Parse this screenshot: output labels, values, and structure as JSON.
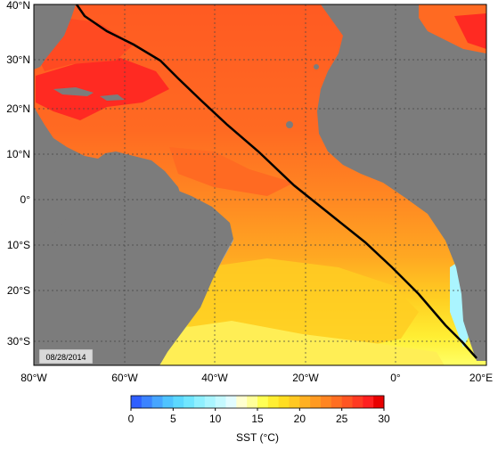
{
  "map": {
    "date_label": "08/28/2014",
    "lat_labels": [
      "40°N",
      "30°N",
      "20°N",
      "10°N",
      "0°",
      "10°S",
      "20°S",
      "30°S"
    ],
    "lon_labels": [
      "80°W",
      "60°W",
      "40°W",
      "20°W",
      "0°",
      "20°E"
    ],
    "extent": {
      "lon_min": -80,
      "lon_max": 20,
      "lat_min": -35,
      "lat_max": 40
    },
    "track_label": "",
    "colors": {
      "land": "#7c7c7c",
      "shelf": "#a3a3a3",
      "track": "#000000",
      "grid": "#444444"
    }
  },
  "colorbar": {
    "title": "SST (°C)",
    "tick_labels": [
      "0",
      "5",
      "10",
      "15",
      "20",
      "25",
      "30"
    ],
    "range": [
      0,
      30
    ],
    "colors": [
      "#2f5fff",
      "#3b83ff",
      "#46a5ff",
      "#4fc3ff",
      "#5cd8ff",
      "#71e6ff",
      "#8ff0ff",
      "#aaf5ff",
      "#c5f9ff",
      "#e2fcff",
      "#ffffd0",
      "#ffff9a",
      "#ffff55",
      "#ffee33",
      "#ffdd22",
      "#ffc822",
      "#ffb022",
      "#ff9a22",
      "#ff8522",
      "#ff6e22",
      "#ff5522",
      "#ff3a22",
      "#ff1f1f",
      "#e80000"
    ]
  }
}
